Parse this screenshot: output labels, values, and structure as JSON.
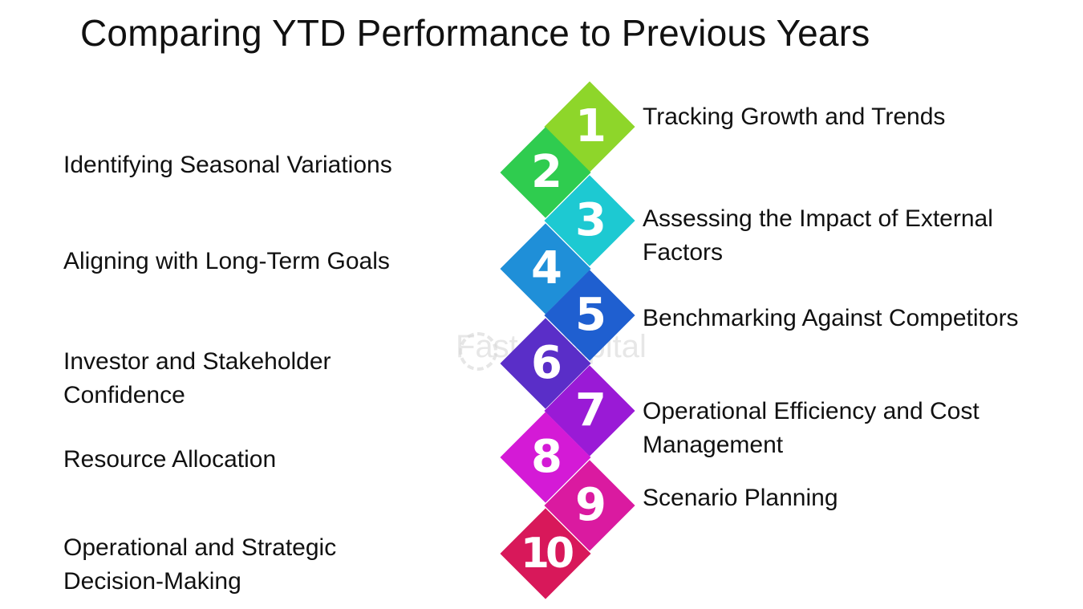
{
  "title": "Comparing YTD Performance to Previous Years",
  "watermark": "FasterCapital",
  "steps": [
    {
      "number": "1",
      "label": "Tracking Growth and Trends",
      "color": "#8ed62a"
    },
    {
      "number": "2",
      "label": "Identifying Seasonal Variations",
      "color": "#2fcc4f"
    },
    {
      "number": "3",
      "label": "Assessing the Impact of External Factors",
      "color": "#1dc9d2"
    },
    {
      "number": "4",
      "label": "Aligning with Long-Term Goals",
      "color": "#1f8fd8"
    },
    {
      "number": "5",
      "label": "Benchmarking Against Competitors",
      "color": "#1f5fd0"
    },
    {
      "number": "6",
      "label": "Investor and Stakeholder Confidence",
      "color": "#5a2ec8"
    },
    {
      "number": "7",
      "label": "Operational Efficiency and Cost Management",
      "color": "#9a1ad6"
    },
    {
      "number": "8",
      "label": "Resource Allocation",
      "color": "#d41ad6"
    },
    {
      "number": "9",
      "label": "Scenario Planning",
      "color": "#da1aa0"
    },
    {
      "number": "10",
      "label": "Operational and Strategic Decision-Making",
      "color": "#d8185a"
    }
  ]
}
